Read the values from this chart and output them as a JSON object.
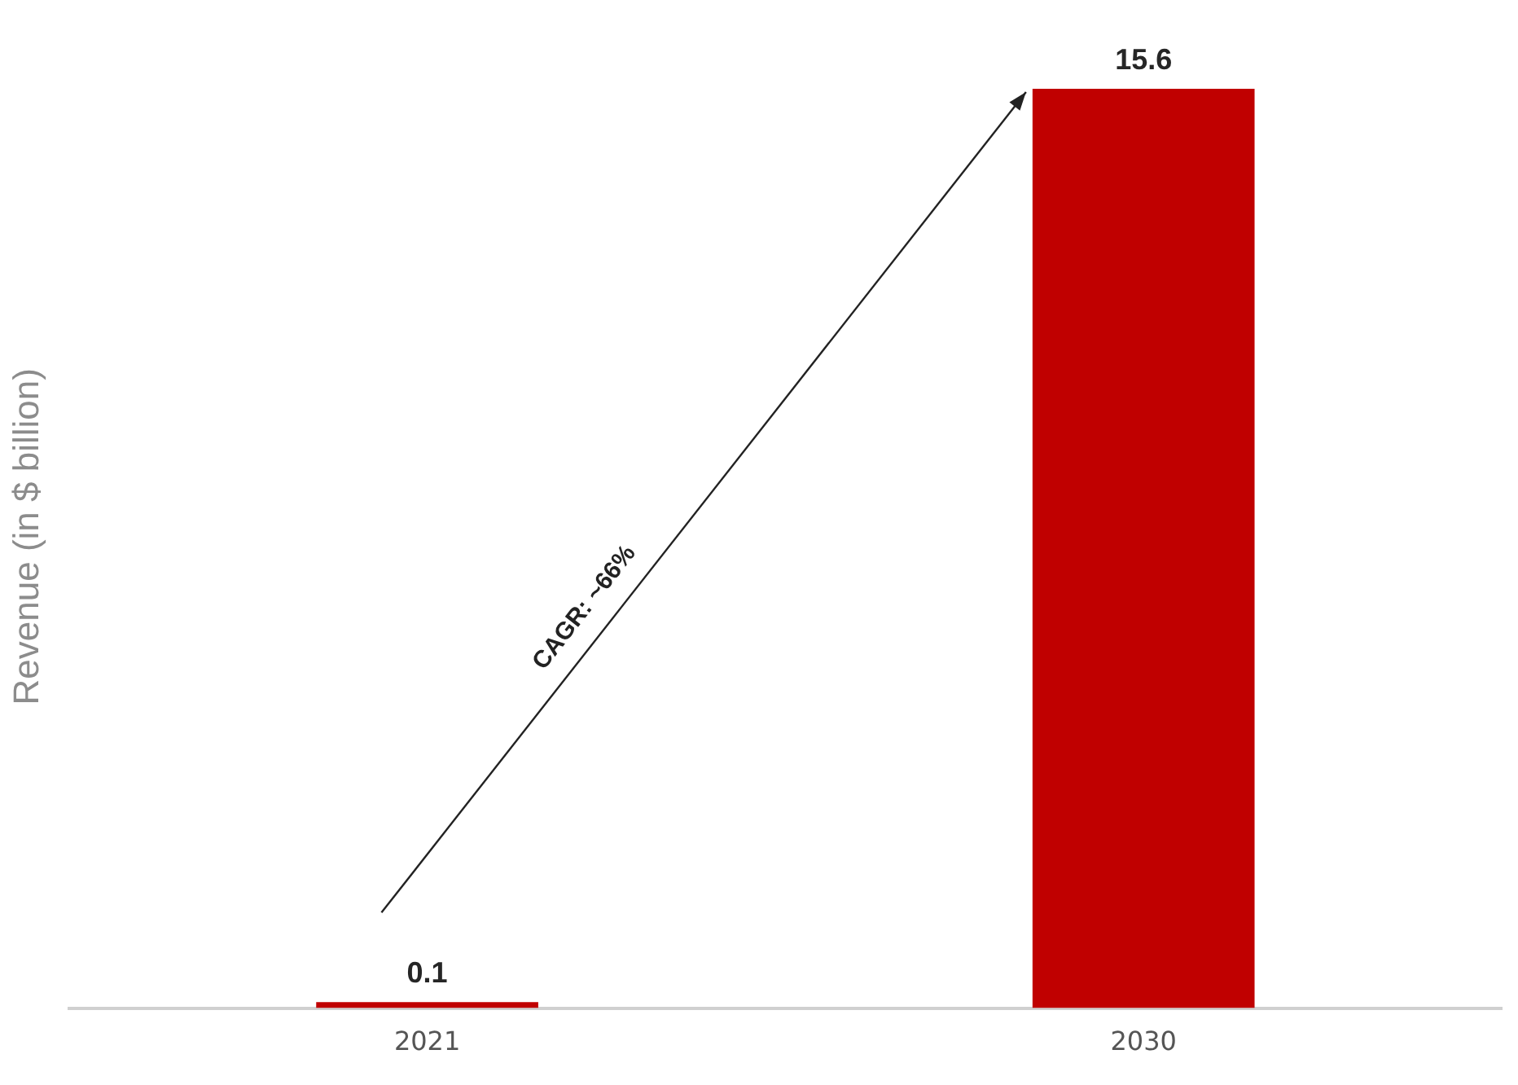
{
  "chart_data": {
    "type": "bar",
    "categories": [
      "2021",
      "2030"
    ],
    "values": [
      0.1,
      15.6
    ],
    "color": "#c00000",
    "ylabel": "Revenue (in $ billion)",
    "data_labels": true,
    "grid": false,
    "legend": false,
    "tick_labels": "x",
    "annotations": [
      "CAGR: ~66%"
    ]
  }
}
